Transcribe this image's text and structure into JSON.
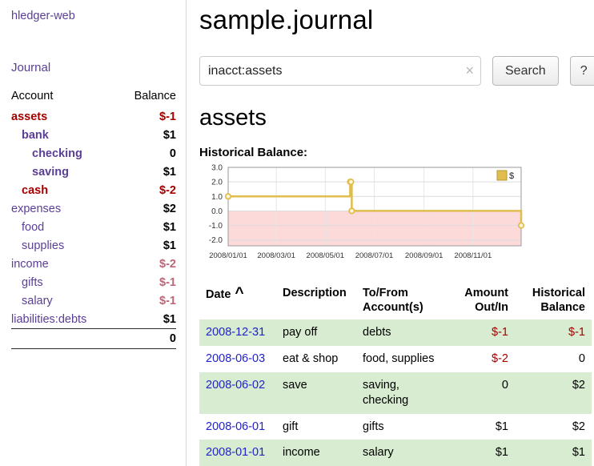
{
  "colors": {
    "link-purple": "#5b3e96",
    "negative-red": "#a40000",
    "soft-red": "#bb6677",
    "row-green": "#d7ecd0",
    "date-link-blue": "#2222cc",
    "chart-line": "#e0bd4e",
    "chart-legend-border": "#b49a30",
    "chart-negative-fill": "#fcdada"
  },
  "sidebar": {
    "app_title": "hledger-web",
    "journal_link": "Journal",
    "accounts": {
      "header_account": "Account",
      "header_balance": "Balance",
      "rows": [
        {
          "name": "assets",
          "balance": "$-1"
        },
        {
          "name": "bank",
          "balance": "$1"
        },
        {
          "name": "checking",
          "balance": "0"
        },
        {
          "name": "saving",
          "balance": "$1"
        },
        {
          "name": "cash",
          "balance": "$-2"
        },
        {
          "name": "expenses",
          "balance": "$2"
        },
        {
          "name": "food",
          "balance": "$1"
        },
        {
          "name": "supplies",
          "balance": "$1"
        },
        {
          "name": "income",
          "balance": "$-2"
        },
        {
          "name": "gifts",
          "balance": "$-1"
        },
        {
          "name": "salary",
          "balance": "$-1"
        },
        {
          "name": "liabilities:debts",
          "balance": "$1"
        }
      ],
      "total": "0"
    }
  },
  "main": {
    "title": "sample.journal",
    "search": {
      "value": "inacct:assets",
      "clear_icon": "×",
      "button_label": "Search",
      "help_label": "?"
    },
    "account_heading": "assets",
    "chart_label": "Historical Balance:"
  },
  "chart_data": {
    "type": "line",
    "title": "Historical Balance",
    "x_start": "2008-01-01",
    "x_end": "2008-12-31",
    "ylim": [
      -2.4,
      3.0
    ],
    "yticks": [
      3.0,
      2.0,
      1.0,
      0.0,
      -1.0,
      -2.0
    ],
    "xticks": [
      {
        "date": "2008-01-01",
        "label": "2008/01/01"
      },
      {
        "date": "2008-03-01",
        "label": "2008/03/01"
      },
      {
        "date": "2008-05-01",
        "label": "2008/05/01"
      },
      {
        "date": "2008-07-01",
        "label": "2008/07/01"
      },
      {
        "date": "2008-09-01",
        "label": "2008/09/01"
      },
      {
        "date": "2008-11-01",
        "label": "2008/11/01"
      }
    ],
    "series": [
      {
        "name": "$",
        "points": [
          [
            "2008-01-01",
            1
          ],
          [
            "2008-06-01",
            2
          ],
          [
            "2008-06-02",
            2
          ],
          [
            "2008-06-03",
            0
          ],
          [
            "2008-12-31",
            -1
          ]
        ]
      }
    ],
    "legend_position": "top-right",
    "grid": true,
    "negative_region": true
  },
  "register": {
    "headers": {
      "date": "Date",
      "sort_icon": "^",
      "description": "Description",
      "accounts": "To/From Account(s)",
      "amount": "Amount Out/In",
      "balance": "Historical Balance"
    },
    "rows": [
      {
        "date": "2008-12-31",
        "description": "pay off",
        "accounts": "debts",
        "amount": "$-1",
        "balance": "$-1"
      },
      {
        "date": "2008-06-03",
        "description": "eat & shop",
        "accounts": "food, supplies",
        "amount": "$-2",
        "balance": "0"
      },
      {
        "date": "2008-06-02",
        "description": "save",
        "accounts": "saving, checking",
        "amount": "0",
        "balance": "$2"
      },
      {
        "date": "2008-06-01",
        "description": "gift",
        "accounts": "gifts",
        "amount": "$1",
        "balance": "$2"
      },
      {
        "date": "2008-01-01",
        "description": "income",
        "accounts": "salary",
        "amount": "$1",
        "balance": "$1"
      }
    ]
  }
}
